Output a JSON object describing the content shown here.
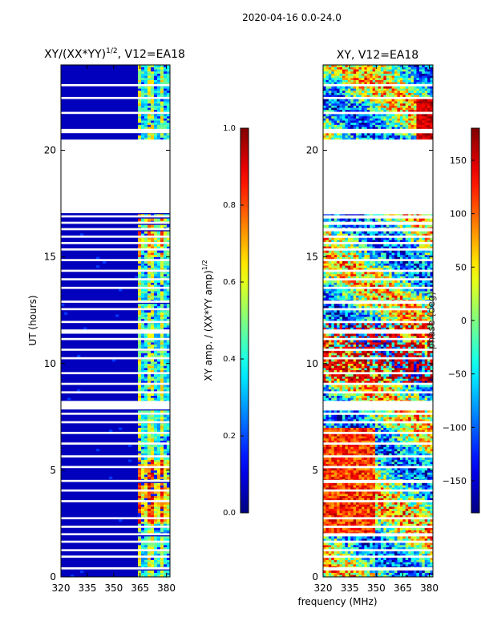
{
  "suptitle": "2020-04-16 0.0-24.0",
  "chart_data": [
    {
      "type": "heatmap",
      "panel": "left",
      "title": "XY/(XX*YY)^1/2, V12=EA18",
      "title_main": "XY/(XX*YY)",
      "title_exp": "1/2",
      "title_tail": ", V12=EA18",
      "xlabel": "",
      "ylabel": "UT (hours)",
      "xlim": [
        320,
        382
      ],
      "ylim": [
        0,
        24
      ],
      "xticks": [
        320,
        335,
        350,
        365,
        380
      ],
      "yticks": [
        0,
        5,
        10,
        15,
        20
      ],
      "colorbar": {
        "label": "XY amp. / (XX*YY amp)^1/2",
        "label_main": "XY amp. / (XX*YY amp)",
        "label_exp": "1/2",
        "range": [
          0.0,
          1.0
        ],
        "ticks": [
          "0.0",
          "0.2",
          "0.4",
          "0.6",
          "0.8",
          "1.0"
        ],
        "colormap": "jet"
      },
      "flagged_time_gaps_hours": [
        [
          0.35,
          0.45
        ],
        [
          0.9,
          1.0
        ],
        [
          1.2,
          1.3
        ],
        [
          1.6,
          1.7
        ],
        [
          1.95,
          2.05
        ],
        [
          2.3,
          2.4
        ],
        [
          2.7,
          2.8
        ],
        [
          3.5,
          3.6
        ],
        [
          4.0,
          4.1
        ],
        [
          4.45,
          4.55
        ],
        [
          5.1,
          5.2
        ],
        [
          5.6,
          5.7
        ],
        [
          6.2,
          6.3
        ],
        [
          6.7,
          6.8
        ],
        [
          7.2,
          7.3
        ],
        [
          7.6,
          7.7
        ],
        [
          7.85,
          8.25
        ],
        [
          8.6,
          8.7
        ],
        [
          9.0,
          9.1
        ],
        [
          9.5,
          9.6
        ],
        [
          10.2,
          10.3
        ],
        [
          10.6,
          10.7
        ],
        [
          11.1,
          11.2
        ],
        [
          11.4,
          11.6
        ],
        [
          11.9,
          12.0
        ],
        [
          12.5,
          12.6
        ],
        [
          12.85,
          12.95
        ],
        [
          13.5,
          13.6
        ],
        [
          13.9,
          14.0
        ],
        [
          14.3,
          14.4
        ],
        [
          14.8,
          14.9
        ],
        [
          15.3,
          15.4
        ],
        [
          15.6,
          15.7
        ],
        [
          15.9,
          16.0
        ],
        [
          16.25,
          16.35
        ],
        [
          16.55,
          16.65
        ],
        [
          16.85,
          16.95
        ],
        [
          17.05,
          20.5
        ],
        [
          20.8,
          21.0
        ],
        [
          21.7,
          21.8
        ],
        [
          22.4,
          22.5
        ],
        [
          23.0,
          23.1
        ]
      ],
      "high_amplitude_band_MHz": [
        363,
        382
      ]
    },
    {
      "type": "heatmap",
      "panel": "right",
      "title": "XY, V12=EA18",
      "xlabel": "frequency (MHz)",
      "ylabel": "",
      "xlim": [
        320,
        382
      ],
      "ylim": [
        0,
        24
      ],
      "xticks": [
        320,
        335,
        350,
        365,
        380
      ],
      "yticks": [
        0,
        5,
        10,
        15,
        20
      ],
      "colorbar": {
        "label": "phase (deg)",
        "range": [
          -180,
          180
        ],
        "ticks": [
          "−150",
          "−100",
          "−50",
          "0",
          "50",
          "100",
          "150"
        ],
        "tick_values": [
          -150,
          -100,
          -50,
          0,
          50,
          100,
          150
        ],
        "colormap": "jet"
      },
      "flagged_time_gaps_hours": [
        [
          0.35,
          0.45
        ],
        [
          0.9,
          1.0
        ],
        [
          1.2,
          1.3
        ],
        [
          1.6,
          1.7
        ],
        [
          1.95,
          2.05
        ],
        [
          2.3,
          2.4
        ],
        [
          2.7,
          2.8
        ],
        [
          3.5,
          3.6
        ],
        [
          4.0,
          4.1
        ],
        [
          4.45,
          4.55
        ],
        [
          5.1,
          5.2
        ],
        [
          5.6,
          5.7
        ],
        [
          6.2,
          6.3
        ],
        [
          6.7,
          6.8
        ],
        [
          7.2,
          7.3
        ],
        [
          7.6,
          7.7
        ],
        [
          7.85,
          8.25
        ],
        [
          8.6,
          8.7
        ],
        [
          9.0,
          9.1
        ],
        [
          9.5,
          9.6
        ],
        [
          10.2,
          10.3
        ],
        [
          10.6,
          10.7
        ],
        [
          11.1,
          11.2
        ],
        [
          11.4,
          11.6
        ],
        [
          11.9,
          12.0
        ],
        [
          12.5,
          12.6
        ],
        [
          12.85,
          12.95
        ],
        [
          13.5,
          13.6
        ],
        [
          13.9,
          14.0
        ],
        [
          14.3,
          14.4
        ],
        [
          14.8,
          14.9
        ],
        [
          15.3,
          15.4
        ],
        [
          15.6,
          15.7
        ],
        [
          15.9,
          16.0
        ],
        [
          16.25,
          16.35
        ],
        [
          16.55,
          16.65
        ],
        [
          16.85,
          16.95
        ],
        [
          17.05,
          20.5
        ],
        [
          20.8,
          21.0
        ],
        [
          21.7,
          21.8
        ],
        [
          22.4,
          22.5
        ],
        [
          23.0,
          23.1
        ]
      ]
    }
  ]
}
